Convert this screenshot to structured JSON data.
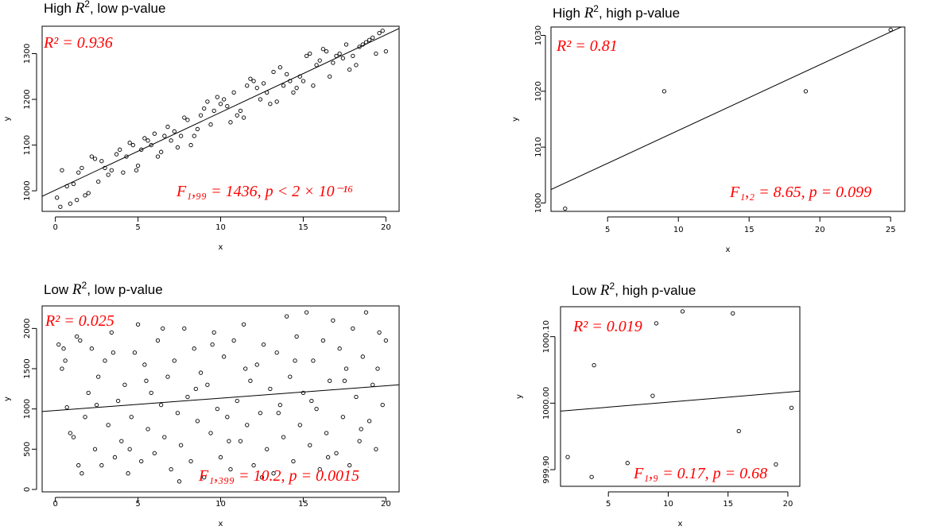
{
  "chart_data": [
    {
      "type": "scatter",
      "title_prefix": "High ",
      "title_symbol": "R",
      "title_sup": "2",
      "title_suffix": ", low p-value",
      "xlabel": "x",
      "ylabel": "y",
      "xlim": [
        -0.8,
        20.8
      ],
      "ylim": [
        955,
        1360
      ],
      "xticks": [
        0,
        5,
        10,
        15,
        20
      ],
      "yticks": [
        1000,
        1100,
        1200,
        1300
      ],
      "ytick_labels": [
        "1000",
        "1100",
        "1200",
        "1300"
      ],
      "fit_line": {
        "x": [
          -0.8,
          20.8
        ],
        "y": [
          988,
          1355
        ]
      },
      "annotation_r2": "R² = 0.936",
      "annotation_f": "F₁,₉₉ = 1436, p < 2 × 10⁻¹⁶",
      "points": [
        [
          0.1,
          985
        ],
        [
          0.3,
          965
        ],
        [
          0.4,
          1045
        ],
        [
          0.7,
          1010
        ],
        [
          0.9,
          972
        ],
        [
          1.1,
          1015
        ],
        [
          1.3,
          980
        ],
        [
          1.4,
          1040
        ],
        [
          1.6,
          1050
        ],
        [
          1.8,
          990
        ],
        [
          2.0,
          995
        ],
        [
          2.2,
          1075
        ],
        [
          2.4,
          1070
        ],
        [
          2.6,
          1020
        ],
        [
          2.8,
          1065
        ],
        [
          3.0,
          1050
        ],
        [
          3.2,
          1035
        ],
        [
          3.4,
          1045
        ],
        [
          3.7,
          1080
        ],
        [
          3.9,
          1090
        ],
        [
          4.1,
          1040
        ],
        [
          4.3,
          1075
        ],
        [
          4.5,
          1105
        ],
        [
          4.7,
          1100
        ],
        [
          4.9,
          1045
        ],
        [
          5.0,
          1055
        ],
        [
          5.2,
          1090
        ],
        [
          5.4,
          1115
        ],
        [
          5.6,
          1110
        ],
        [
          5.8,
          1100
        ],
        [
          6.0,
          1125
        ],
        [
          6.2,
          1075
        ],
        [
          6.4,
          1085
        ],
        [
          6.6,
          1120
        ],
        [
          6.8,
          1140
        ],
        [
          7.0,
          1110
        ],
        [
          7.2,
          1130
        ],
        [
          7.4,
          1095
        ],
        [
          7.6,
          1120
        ],
        [
          7.8,
          1160
        ],
        [
          8.0,
          1155
        ],
        [
          8.2,
          1100
        ],
        [
          8.4,
          1120
        ],
        [
          8.6,
          1135
        ],
        [
          8.8,
          1165
        ],
        [
          9.0,
          1180
        ],
        [
          9.2,
          1195
        ],
        [
          9.4,
          1145
        ],
        [
          9.6,
          1175
        ],
        [
          9.8,
          1205
        ],
        [
          10.0,
          1190
        ],
        [
          10.2,
          1200
        ],
        [
          10.4,
          1185
        ],
        [
          10.6,
          1150
        ],
        [
          10.8,
          1215
        ],
        [
          11.0,
          1165
        ],
        [
          11.2,
          1175
        ],
        [
          11.4,
          1160
        ],
        [
          11.6,
          1230
        ],
        [
          11.8,
          1245
        ],
        [
          12.0,
          1240
        ],
        [
          12.2,
          1225
        ],
        [
          12.4,
          1200
        ],
        [
          12.6,
          1235
        ],
        [
          12.8,
          1215
        ],
        [
          13.0,
          1190
        ],
        [
          13.2,
          1260
        ],
        [
          13.4,
          1195
        ],
        [
          13.6,
          1270
        ],
        [
          13.8,
          1230
        ],
        [
          14.0,
          1255
        ],
        [
          14.2,
          1240
        ],
        [
          14.4,
          1215
        ],
        [
          14.6,
          1225
        ],
        [
          14.8,
          1250
        ],
        [
          15.0,
          1240
        ],
        [
          15.2,
          1295
        ],
        [
          15.4,
          1300
        ],
        [
          15.6,
          1230
        ],
        [
          15.8,
          1275
        ],
        [
          16.0,
          1285
        ],
        [
          16.2,
          1310
        ],
        [
          16.4,
          1305
        ],
        [
          16.6,
          1250
        ],
        [
          16.8,
          1280
        ],
        [
          17.0,
          1295
        ],
        [
          17.2,
          1300
        ],
        [
          17.4,
          1290
        ],
        [
          17.6,
          1320
        ],
        [
          17.8,
          1265
        ],
        [
          18.0,
          1295
        ],
        [
          18.2,
          1275
        ],
        [
          18.4,
          1315
        ],
        [
          18.6,
          1320
        ],
        [
          18.8,
          1325
        ],
        [
          19.0,
          1330
        ],
        [
          19.2,
          1335
        ],
        [
          19.4,
          1300
        ],
        [
          19.6,
          1345
        ],
        [
          19.8,
          1350
        ],
        [
          20.0,
          1305
        ]
      ]
    },
    {
      "type": "scatter",
      "title_prefix": "High ",
      "title_symbol": "R",
      "title_sup": "2",
      "title_suffix": ", high p-value",
      "xlabel": "x",
      "ylabel": "y",
      "xlim": [
        1,
        26
      ],
      "ylim": [
        998.5,
        1031.5
      ],
      "xticks": [
        5,
        10,
        15,
        20,
        25
      ],
      "yticks": [
        1000,
        1010,
        1020,
        1030
      ],
      "ytick_labels": [
        "1000",
        "1010",
        "1020",
        "1030"
      ],
      "fit_line": {
        "x": [
          1,
          26
        ],
        "y": [
          1002.4,
          1031.8
        ]
      },
      "annotation_r2": "R² = 0.81",
      "annotation_f": "F₁,₂ = 8.65, p = 0.099",
      "points": [
        [
          2,
          999
        ],
        [
          9,
          1020
        ],
        [
          19,
          1020
        ],
        [
          25,
          1031
        ]
      ]
    },
    {
      "type": "scatter",
      "title_prefix": "Low ",
      "title_symbol": "R",
      "title_sup": "2",
      "title_suffix": ", low p-value",
      "xlabel": "x",
      "ylabel": "y",
      "xlim": [
        -0.8,
        20.8
      ],
      "ylim": [
        -30,
        2280
      ],
      "xticks": [
        0,
        5,
        10,
        15,
        20
      ],
      "yticks": [
        0,
        500,
        1000,
        1500,
        2000
      ],
      "ytick_labels": [
        "0",
        "500",
        "1000",
        "1500",
        "2000"
      ],
      "fit_line": {
        "x": [
          -0.8,
          20.8
        ],
        "y": [
          968,
          1300
        ]
      },
      "annotation_r2": "R² = 0.025",
      "annotation_f": "F₁,₃₉₉ = 10.2, p = 0.0015",
      "points": [
        [
          0.2,
          1800
        ],
        [
          0.4,
          1500
        ],
        [
          0.5,
          1750
        ],
        [
          0.7,
          1020
        ],
        [
          0.9,
          700
        ],
        [
          1.1,
          650
        ],
        [
          1.3,
          1900
        ],
        [
          1.5,
          1850
        ],
        [
          1.6,
          200
        ],
        [
          1.8,
          900
        ],
        [
          2.0,
          1200
        ],
        [
          2.2,
          1750
        ],
        [
          2.4,
          500
        ],
        [
          2.6,
          1400
        ],
        [
          2.8,
          300
        ],
        [
          3.0,
          1600
        ],
        [
          3.2,
          800
        ],
        [
          3.4,
          1950
        ],
        [
          3.6,
          400
        ],
        [
          3.8,
          1100
        ],
        [
          4.0,
          600
        ],
        [
          4.2,
          1300
        ],
        [
          4.4,
          200
        ],
        [
          4.6,
          900
        ],
        [
          4.8,
          1700
        ],
        [
          5.0,
          2050
        ],
        [
          5.2,
          350
        ],
        [
          5.4,
          1550
        ],
        [
          5.6,
          750
        ],
        [
          5.8,
          1200
        ],
        [
          6.0,
          450
        ],
        [
          6.2,
          1850
        ],
        [
          6.4,
          1050
        ],
        [
          6.6,
          650
        ],
        [
          6.8,
          1400
        ],
        [
          7.0,
          250
        ],
        [
          7.2,
          1600
        ],
        [
          7.4,
          950
        ],
        [
          7.6,
          550
        ],
        [
          7.8,
          2000
        ],
        [
          8.0,
          1150
        ],
        [
          8.2,
          350
        ],
        [
          8.4,
          1750
        ],
        [
          8.6,
          850
        ],
        [
          8.8,
          1450
        ],
        [
          9.0,
          150
        ],
        [
          9.2,
          1300
        ],
        [
          9.4,
          700
        ],
        [
          9.6,
          1950
        ],
        [
          9.8,
          1000
        ],
        [
          10.0,
          400
        ],
        [
          10.2,
          1650
        ],
        [
          10.4,
          900
        ],
        [
          10.6,
          250
        ],
        [
          10.8,
          1850
        ],
        [
          11.0,
          1100
        ],
        [
          11.2,
          600
        ],
        [
          11.4,
          2050
        ],
        [
          11.6,
          800
        ],
        [
          11.8,
          1350
        ],
        [
          12.0,
          300
        ],
        [
          12.2,
          1550
        ],
        [
          12.4,
          950
        ],
        [
          12.6,
          1800
        ],
        [
          12.8,
          500
        ],
        [
          13.0,
          1250
        ],
        [
          13.2,
          200
        ],
        [
          13.4,
          1700
        ],
        [
          13.6,
          1050
        ],
        [
          13.8,
          650
        ],
        [
          14.0,
          2150
        ],
        [
          14.2,
          1400
        ],
        [
          14.4,
          350
        ],
        [
          14.6,
          1900
        ],
        [
          14.8,
          800
        ],
        [
          15.0,
          1200
        ],
        [
          15.2,
          2200
        ],
        [
          15.4,
          550
        ],
        [
          15.6,
          1600
        ],
        [
          15.8,
          1000
        ],
        [
          16.0,
          250
        ],
        [
          16.2,
          1850
        ],
        [
          16.4,
          700
        ],
        [
          16.6,
          1350
        ],
        [
          16.8,
          2100
        ],
        [
          17.0,
          450
        ],
        [
          17.2,
          1750
        ],
        [
          17.4,
          900
        ],
        [
          17.6,
          1500
        ],
        [
          17.8,
          300
        ],
        [
          18.0,
          2000
        ],
        [
          18.2,
          1150
        ],
        [
          18.4,
          600
        ],
        [
          18.6,
          1650
        ],
        [
          18.8,
          2200
        ],
        [
          19.0,
          850
        ],
        [
          19.2,
          1300
        ],
        [
          19.4,
          500
        ],
        [
          19.6,
          1950
        ],
        [
          19.8,
          1050
        ],
        [
          20.0,
          1850
        ],
        [
          0.6,
          1600
        ],
        [
          1.4,
          300
        ],
        [
          2.5,
          1050
        ],
        [
          3.5,
          1700
        ],
        [
          4.5,
          500
        ],
        [
          5.5,
          1350
        ],
        [
          6.5,
          2000
        ],
        [
          7.5,
          100
        ],
        [
          8.5,
          1250
        ],
        [
          9.5,
          1800
        ],
        [
          10.5,
          600
        ],
        [
          11.5,
          1500
        ],
        [
          12.5,
          150
        ],
        [
          13.5,
          950
        ],
        [
          14.5,
          1600
        ],
        [
          15.5,
          1100
        ],
        [
          16.5,
          400
        ],
        [
          17.5,
          1350
        ],
        [
          18.5,
          750
        ],
        [
          19.5,
          1500
        ]
      ]
    },
    {
      "type": "scatter",
      "title_prefix": "Low ",
      "title_symbol": "R",
      "title_sup": "2",
      "title_suffix": ", high p-value",
      "xlabel": "x",
      "ylabel": "y",
      "xlim": [
        1,
        21
      ],
      "ylim": [
        999.875,
        1000.145
      ],
      "xticks": [
        5,
        10,
        15,
        20
      ],
      "yticks": [
        999.9,
        1000.0,
        1000.1
      ],
      "ytick_labels": [
        "999.90",
        "1000.00",
        "1000.10"
      ],
      "fit_line": {
        "x": [
          1,
          21
        ],
        "y": [
          999.988,
          1000.018
        ]
      },
      "annotation_r2": "R² = 0.019",
      "annotation_f": "F₁,₉ = 0.17, p = 0.68",
      "points": [
        [
          1.6,
          999.919
        ],
        [
          3.6,
          999.889
        ],
        [
          3.8,
          1000.057
        ],
        [
          6.6,
          999.91
        ],
        [
          8.7,
          1000.011
        ],
        [
          9.0,
          1000.12
        ],
        [
          11.2,
          1000.138
        ],
        [
          15.4,
          1000.135
        ],
        [
          15.9,
          999.958
        ],
        [
          19.0,
          999.908
        ],
        [
          20.3,
          999.993
        ]
      ]
    }
  ]
}
